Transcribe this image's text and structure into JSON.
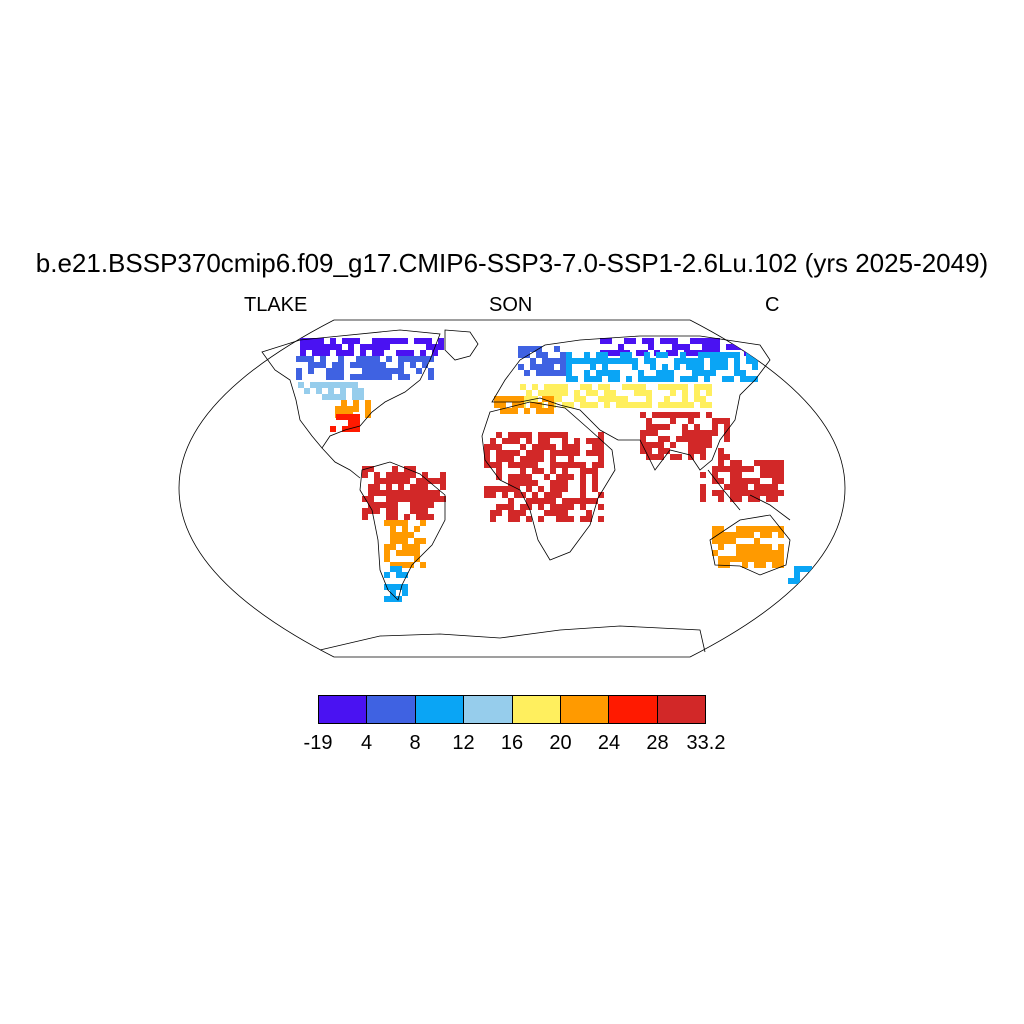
{
  "title": "b.e21.BSSP370cmip6.f09_g17.CMIP6-SSP3-7.0-SSP1-2.6Lu.102 (yrs 2025-2049)",
  "subtitles": {
    "left": "TLAKE",
    "center": "SON",
    "right": "C"
  },
  "projection": "Robinson",
  "colorbar": {
    "colors": [
      "#4a12f2",
      "#3f62e2",
      "#0aa5f5",
      "#96cdec",
      "#ffef5e",
      "#ff9a00",
      "#ff1a00",
      "#d22828"
    ],
    "labels": [
      "-19",
      "4",
      "8",
      "12",
      "16",
      "20",
      "24",
      "28",
      "33.2"
    ]
  },
  "regions": [
    {
      "name": "arctic-canada",
      "bin": 0
    },
    {
      "name": "northern-siberia",
      "bin": 0
    },
    {
      "name": "canada",
      "bin": 1
    },
    {
      "name": "scandinavia",
      "bin": 1
    },
    {
      "name": "russia",
      "bin": 2
    },
    {
      "name": "northern-usa",
      "bin": 3
    },
    {
      "name": "central-asia",
      "bin": 4
    },
    {
      "name": "southeast-usa",
      "bin": 5
    },
    {
      "name": "mediterranean",
      "bin": 5
    },
    {
      "name": "gulf-coast",
      "bin": 6
    },
    {
      "name": "amazon",
      "bin": 7
    },
    {
      "name": "central-africa",
      "bin": 7
    },
    {
      "name": "india",
      "bin": 7
    },
    {
      "name": "southeast-asia",
      "bin": 7
    },
    {
      "name": "southern-brazil",
      "bin": 5
    },
    {
      "name": "patagonia",
      "bin": 2
    },
    {
      "name": "australia",
      "bin": 5
    },
    {
      "name": "new-zealand",
      "bin": 2
    }
  ]
}
